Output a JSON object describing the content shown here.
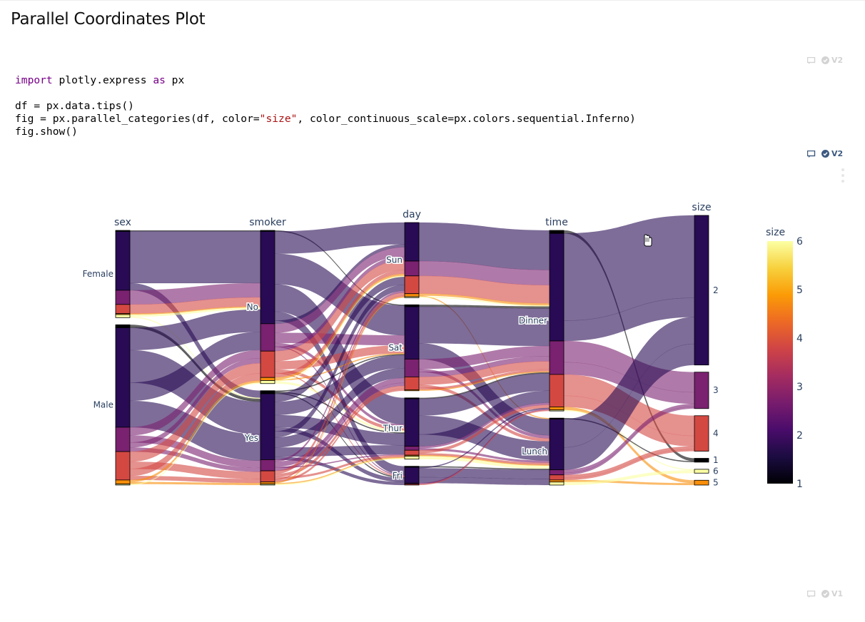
{
  "heading": "Parallel Coordinates Plot",
  "code_cell": {
    "line1": {
      "kw_import": "import",
      "mod": " plotly.express ",
      "kw_as": "as",
      "alias": " px"
    },
    "line3": "df = px.data.tips()",
    "line4": {
      "before": "fig = px.parallel_categories(df, color=",
      "str": "\"size\"",
      "after": ", color_continuous_scale=px.colors.sequential.Inferno)"
    },
    "line5": "fig.show()"
  },
  "cell_tools": {
    "top": {
      "version": "V2",
      "icons": [
        "comment-icon",
        "check-circle-icon"
      ]
    },
    "middle": {
      "version": "V2",
      "icons": [
        "comment-icon",
        "check-circle-icon"
      ],
      "menu_icon": "kebab-menu-icon"
    },
    "bottom": {
      "version": "V1",
      "icons": [
        "comment-icon",
        "check-circle-icon"
      ]
    }
  },
  "chart_data": {
    "type": "parallel_categories",
    "dimensions": [
      {
        "label": "sex",
        "categories": [
          {
            "label": "Female",
            "counts": {
              "1": 1,
              "2": 58,
              "3": 14,
              "4": 9,
              "5": 1,
              "6": 3
            }
          },
          {
            "label": "Male",
            "counts": {
              "1": 3,
              "2": 98,
              "3": 24,
              "4": 28,
              "5": 4,
              "6": 1
            }
          }
        ]
      },
      {
        "label": "smoker",
        "categories": [
          {
            "label": "No",
            "counts": {
              "1": 1,
              "2": 91,
              "3": 27,
              "4": 26,
              "5": 3,
              "6": 3
            }
          },
          {
            "label": "Yes",
            "counts": {
              "1": 3,
              "2": 65,
              "3": 11,
              "4": 11,
              "5": 2,
              "6": 1
            }
          }
        ]
      },
      {
        "label": "day",
        "categories": [
          {
            "label": "Sun",
            "counts": {
              "2": 39,
              "3": 15,
              "4": 18,
              "5": 3,
              "6": 1
            }
          },
          {
            "label": "Sat",
            "counts": {
              "1": 2,
              "2": 53,
              "3": 18,
              "4": 13,
              "5": 1
            }
          },
          {
            "label": "Thur",
            "counts": {
              "1": 1,
              "2": 48,
              "3": 4,
              "4": 5,
              "5": 1,
              "6": 3
            }
          },
          {
            "label": "Fri",
            "counts": {
              "1": 1,
              "2": 16,
              "3": 1,
              "4": 1
            }
          }
        ]
      },
      {
        "label": "time",
        "categories": [
          {
            "label": "Dinner",
            "counts": {
              "1": 3,
              "2": 106,
              "3": 33,
              "4": 32,
              "5": 3,
              "6": 1
            }
          },
          {
            "label": "Lunch",
            "counts": {
              "1": 1,
              "2": 50,
              "3": 5,
              "4": 5,
              "5": 2,
              "6": 3
            }
          }
        ]
      },
      {
        "label": "size",
        "categories": [
          {
            "label": "2",
            "counts": {
              "2": 156
            }
          },
          {
            "label": "3",
            "counts": {
              "3": 38
            }
          },
          {
            "label": "4",
            "counts": {
              "4": 37
            }
          },
          {
            "label": "1",
            "counts": {
              "1": 4
            }
          },
          {
            "label": "6",
            "counts": {
              "6": 4
            }
          },
          {
            "label": "5",
            "counts": {
              "5": 5
            }
          }
        ]
      }
    ],
    "colorbar": {
      "title": "size",
      "range": [
        1,
        6
      ],
      "ticks": [
        "1",
        "2",
        "3",
        "4",
        "5",
        "6"
      ]
    },
    "colorscale_name": "Inferno",
    "colors": {
      "1": "#000004",
      "2": "#280b54",
      "3": "#7a2170",
      "4": "#d44842",
      "5": "#f98e09",
      "6": "#fcffa4",
      "ribbon_opacity": 0.6,
      "scale": [
        "#000004",
        "#1b0c41",
        "#4a0c6b",
        "#781c6d",
        "#a52c60",
        "#cf4446",
        "#ed6925",
        "#fb9b06",
        "#f7d13d",
        "#fcffa4"
      ]
    }
  }
}
